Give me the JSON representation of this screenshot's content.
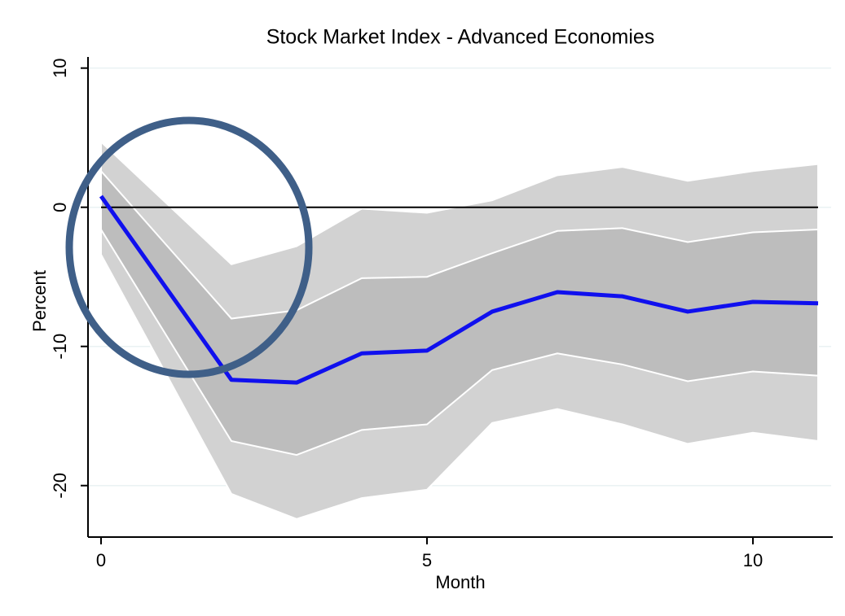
{
  "chart_data": {
    "type": "line",
    "title": "Stock Market Index - Advanced Economies",
    "x_label": "Month",
    "y_label": "Percent",
    "x": [
      0,
      1,
      2,
      3,
      4,
      5,
      6,
      7,
      8,
      9,
      10,
      11
    ],
    "bands": [
      {
        "color": "#d2d2d2",
        "lower": [
          -3.4,
          -12.0,
          -20.6,
          -22.4,
          -20.9,
          -20.3,
          -15.5,
          -14.5,
          -15.6,
          -17.0,
          -16.2,
          -16.8
        ],
        "upper": [
          4.7,
          0.3,
          -4.1,
          -2.8,
          -0.1,
          -0.4,
          0.5,
          2.3,
          2.9,
          1.9,
          2.6,
          3.1
        ]
      },
      {
        "color": "#bdbdbd",
        "lower": [
          -1.6,
          -9.2,
          -16.8,
          -17.8,
          -16.0,
          -15.6,
          -11.7,
          -10.5,
          -11.3,
          -12.5,
          -11.8,
          -12.1
        ],
        "upper": [
          2.6,
          -2.7,
          -8.0,
          -7.4,
          -5.1,
          -5.0,
          -3.3,
          -1.7,
          -1.5,
          -2.5,
          -1.8,
          -1.6
        ]
      }
    ],
    "series": [
      {
        "color": "#1010ee",
        "values": [
          0.8,
          -5.8,
          -12.4,
          -12.6,
          -10.5,
          -10.3,
          -7.5,
          -6.1,
          -6.4,
          -7.5,
          -6.8,
          -6.9
        ]
      }
    ],
    "reference_line": 0,
    "xlim": [
      -0.2,
      11.2
    ],
    "ylim": [
      -23.7,
      10.8
    ],
    "xticks": [
      0,
      5,
      10
    ],
    "yticks": [
      -20,
      -10,
      0,
      10
    ],
    "grid": true
  }
}
